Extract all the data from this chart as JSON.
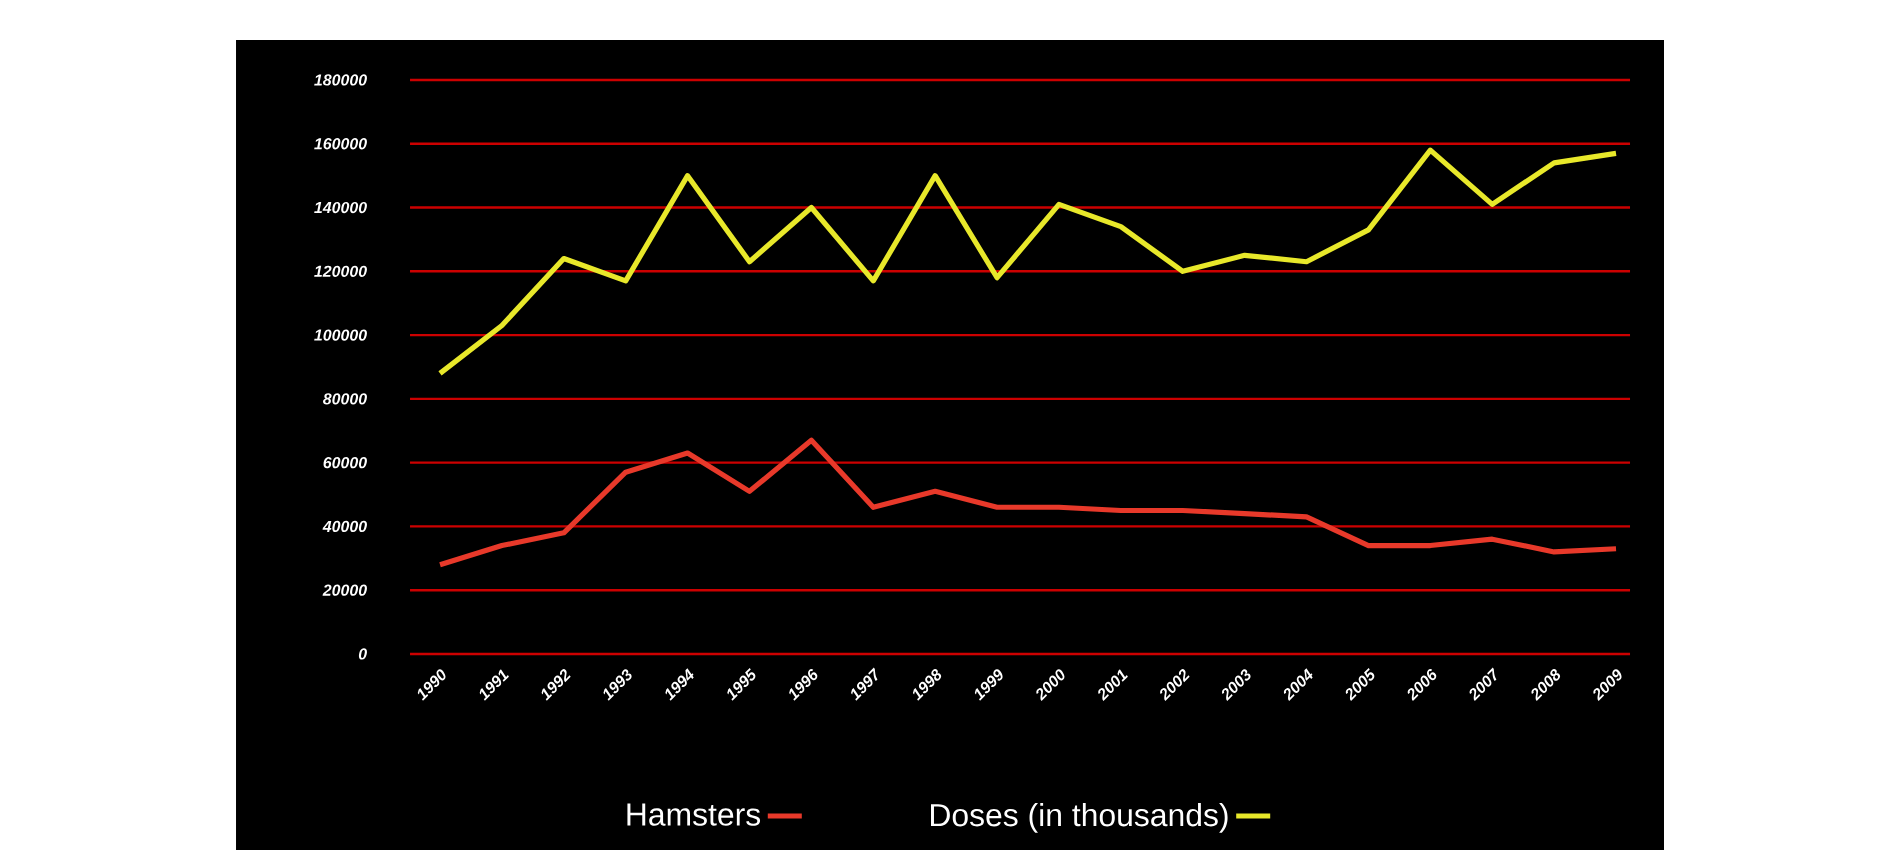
{
  "chart_data": {
    "type": "line",
    "categories": [
      "1990",
      "1991",
      "1992",
      "1993",
      "1994",
      "1995",
      "1996",
      "1997",
      "1998",
      "1999",
      "2000",
      "2001",
      "2002",
      "2003",
      "2004",
      "2005",
      "2006",
      "2007",
      "2008",
      "2009"
    ],
    "series": [
      {
        "name": "Hamsters",
        "color": "#e8392a",
        "values": [
          28000,
          34000,
          38000,
          57000,
          63000,
          51000,
          67000,
          46000,
          51000,
          46000,
          46000,
          45000,
          45000,
          44000,
          43000,
          34000,
          34000,
          36000,
          32000,
          33000
        ]
      },
      {
        "name": "Doses (in thousands)",
        "color": "#e8e82a",
        "values": [
          88000,
          103000,
          124000,
          117000,
          150000,
          123000,
          140000,
          117000,
          150000,
          118000,
          141000,
          134000,
          120000,
          125000,
          123000,
          133000,
          158000,
          141000,
          154000,
          157000
        ]
      }
    ],
    "ylim": [
      0,
      180000
    ],
    "yticks": [
      0,
      20000,
      40000,
      60000,
      80000,
      100000,
      120000,
      140000,
      160000,
      180000
    ],
    "grid": "y",
    "legend": "bottom",
    "marker": "none",
    "line_style": "solid"
  }
}
